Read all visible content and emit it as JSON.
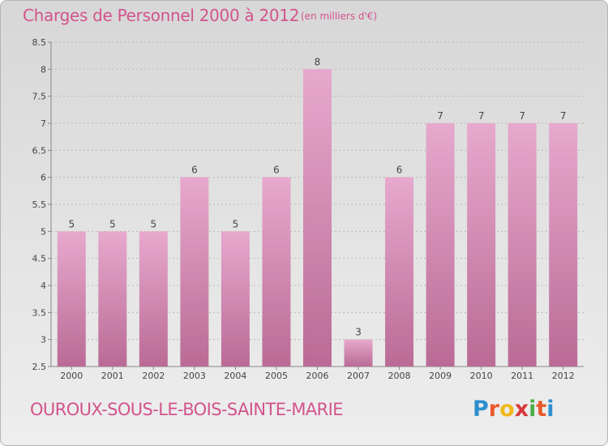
{
  "header": {
    "title": "Charges de Personnel 2000 à 2012",
    "subtitle": "(en milliers d'€)"
  },
  "footer": {
    "place": "OUROUX-SOUS-LE-BOIS-SAINTE-MARIE",
    "brand": "Proxiti",
    "brand_colors": [
      "#2e8fce",
      "#e85a2a",
      "#f1b81c",
      "#d9383b",
      "#4cae48",
      "#e85a2a",
      "#2e8fce"
    ]
  },
  "colors": {
    "bar_light": "#e7a9cd",
    "bar_dark": "#ba6b95",
    "text_accent": "#d2548c",
    "grid": "#b9b9b9"
  },
  "chart_data": {
    "type": "bar",
    "title": "Charges de Personnel 2000 à 2012",
    "subtitle": "(en milliers d'€)",
    "categories": [
      "2000",
      "2001",
      "2002",
      "2003",
      "2004",
      "2005",
      "2006",
      "2007",
      "2008",
      "2009",
      "2010",
      "2011",
      "2012"
    ],
    "values": [
      5,
      5,
      5,
      6,
      5,
      6,
      8,
      3,
      6,
      7,
      7,
      7,
      7
    ],
    "data_labels": [
      "5",
      "5",
      "5",
      "6",
      "5",
      "6",
      "8",
      "3",
      "6",
      "7",
      "7",
      "7",
      "7"
    ],
    "ylim": [
      2.5,
      8.5
    ],
    "yticks": [
      "2.5",
      "3",
      "3.5",
      "4",
      "4.5",
      "5",
      "5.5",
      "6",
      "6.5",
      "7",
      "7.5",
      "8",
      "8.5"
    ],
    "grid": true,
    "legend": "none"
  }
}
